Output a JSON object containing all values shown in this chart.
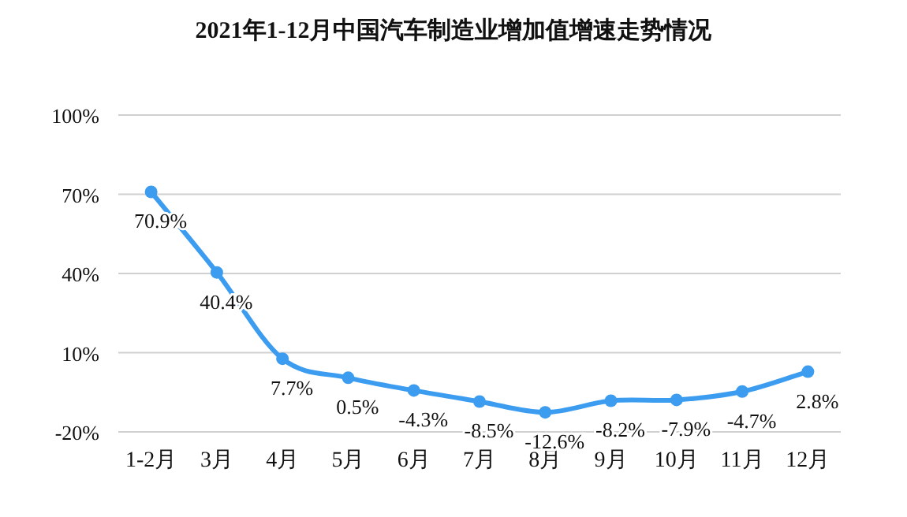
{
  "chart_data": {
    "type": "line",
    "title": "2021年1-12月中国汽车制造业增加值增速走势情况",
    "categories": [
      "1-2月",
      "3月",
      "4月",
      "5月",
      "6月",
      "7月",
      "8月",
      "9月",
      "10月",
      "11月",
      "12月"
    ],
    "series": [
      {
        "color": "#3c9cf0",
        "values": [
          70.9,
          40.4,
          7.7,
          0.5,
          -4.3,
          -8.5,
          -12.6,
          -8.2,
          -7.9,
          -4.7,
          2.8
        ],
        "value_labels": [
          "70.9%",
          "40.4%",
          "7.7%",
          "0.5%",
          "-4.3%",
          "-8.5%",
          "-12.6%",
          "-8.2%",
          "-7.9%",
          "-4.7%",
          "2.8%"
        ]
      }
    ],
    "ylim": [
      -20,
      100
    ],
    "yticks": [
      {
        "value": -20,
        "label": "-20%"
      },
      {
        "value": 10,
        "label": "10%"
      },
      {
        "value": 40,
        "label": "40%"
      },
      {
        "value": 70,
        "label": "70%"
      },
      {
        "value": 100,
        "label": "100%"
      }
    ],
    "grid": "y",
    "marker": "circle",
    "line_style": "solid"
  }
}
